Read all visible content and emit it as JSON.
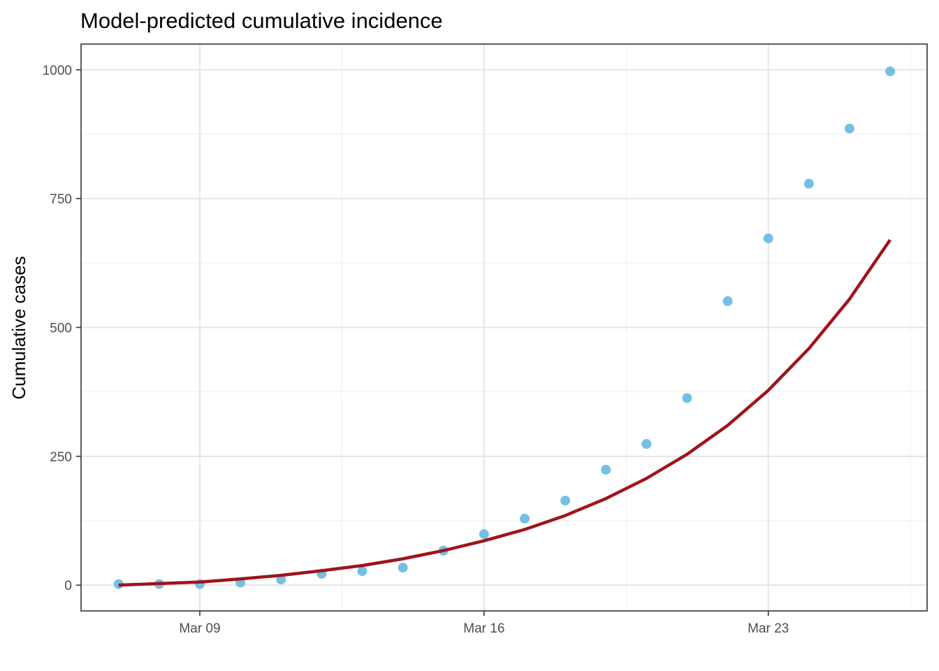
{
  "chart_data": {
    "type": "scatter",
    "title": "Model-predicted cumulative incidence",
    "xlabel": "",
    "ylabel": "Cumulative cases",
    "x_axis_type": "date",
    "xlim": [
      "2020-03-04",
      "2020-03-28"
    ],
    "ylim": [
      -50,
      1050
    ],
    "x_ticks": [
      {
        "value": "2020-03-09",
        "label": "Mar 09"
      },
      {
        "value": "2020-03-16",
        "label": "Mar 16"
      },
      {
        "value": "2020-03-23",
        "label": "Mar 23"
      }
    ],
    "y_ticks": [
      {
        "value": 0,
        "label": "0"
      },
      {
        "value": 250,
        "label": "250"
      },
      {
        "value": 500,
        "label": "500"
      },
      {
        "value": 750,
        "label": "750"
      },
      {
        "value": 1000,
        "label": "1000"
      }
    ],
    "grid": true,
    "legend": "none",
    "series": [
      {
        "type": "scatter",
        "color": "#74c0e3",
        "points": [
          {
            "x": "2020-03-07",
            "y": 2
          },
          {
            "x": "2020-03-08",
            "y": 2
          },
          {
            "x": "2020-03-09",
            "y": 2
          },
          {
            "x": "2020-03-10",
            "y": 5
          },
          {
            "x": "2020-03-11",
            "y": 11
          },
          {
            "x": "2020-03-12",
            "y": 22
          },
          {
            "x": "2020-03-13",
            "y": 27
          },
          {
            "x": "2020-03-14",
            "y": 34
          },
          {
            "x": "2020-03-15",
            "y": 67
          },
          {
            "x": "2020-03-16",
            "y": 99
          },
          {
            "x": "2020-03-17",
            "y": 129
          },
          {
            "x": "2020-03-18",
            "y": 164
          },
          {
            "x": "2020-03-19",
            "y": 224
          },
          {
            "x": "2020-03-20",
            "y": 274
          },
          {
            "x": "2020-03-21",
            "y": 363
          },
          {
            "x": "2020-03-22",
            "y": 551
          },
          {
            "x": "2020-03-23",
            "y": 673
          },
          {
            "x": "2020-03-24",
            "y": 779
          },
          {
            "x": "2020-03-25",
            "y": 886
          },
          {
            "x": "2020-03-26",
            "y": 997
          }
        ]
      },
      {
        "type": "line",
        "color": "#a0131c",
        "points": [
          {
            "x": "2020-03-07",
            "y": 0
          },
          {
            "x": "2020-03-08",
            "y": 3
          },
          {
            "x": "2020-03-09",
            "y": 6
          },
          {
            "x": "2020-03-10",
            "y": 12
          },
          {
            "x": "2020-03-11",
            "y": 19
          },
          {
            "x": "2020-03-12",
            "y": 28
          },
          {
            "x": "2020-03-13",
            "y": 38
          },
          {
            "x": "2020-03-14",
            "y": 51
          },
          {
            "x": "2020-03-15",
            "y": 67
          },
          {
            "x": "2020-03-16",
            "y": 86
          },
          {
            "x": "2020-03-17",
            "y": 108
          },
          {
            "x": "2020-03-18",
            "y": 135
          },
          {
            "x": "2020-03-19",
            "y": 168
          },
          {
            "x": "2020-03-20",
            "y": 207
          },
          {
            "x": "2020-03-21",
            "y": 254
          },
          {
            "x": "2020-03-22",
            "y": 310
          },
          {
            "x": "2020-03-23",
            "y": 378
          },
          {
            "x": "2020-03-24",
            "y": 459
          },
          {
            "x": "2020-03-25",
            "y": 555
          },
          {
            "x": "2020-03-26",
            "y": 670
          }
        ]
      }
    ]
  }
}
